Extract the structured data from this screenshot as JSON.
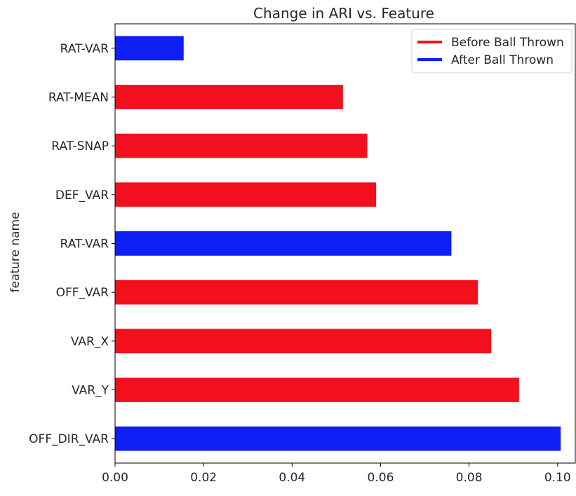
{
  "chart_data": {
    "type": "bar",
    "orientation": "horizontal",
    "title": "Change in ARI vs. Feature",
    "xlabel": "",
    "ylabel": "feature name",
    "xlim": [
      0,
      0.104
    ],
    "xticks": [
      "0.00",
      "0.02",
      "0.04",
      "0.06",
      "0.08",
      "0.10"
    ],
    "grid": false,
    "legend_position": "top-right",
    "categories": [
      "RAT-VAR",
      "RAT-MEAN",
      "RAT-SNAP",
      "DEF_VAR",
      "RAT-VAR",
      "OFF_VAR",
      "VAR_X",
      "VAR_Y",
      "OFF_DIR_VAR"
    ],
    "values": [
      0.0155,
      0.0515,
      0.057,
      0.059,
      0.076,
      0.082,
      0.085,
      0.0913,
      0.1007
    ],
    "bar_series": [
      "After Ball Thrown",
      "Before Ball Thrown",
      "Before Ball Thrown",
      "Before Ball Thrown",
      "After Ball Thrown",
      "Before Ball Thrown",
      "Before Ball Thrown",
      "Before Ball Thrown",
      "After Ball Thrown"
    ],
    "series": [
      {
        "name": "Before Ball Thrown",
        "color": "#f2101e"
      },
      {
        "name": "After Ball Thrown",
        "color": "#0d1ff5"
      }
    ]
  }
}
